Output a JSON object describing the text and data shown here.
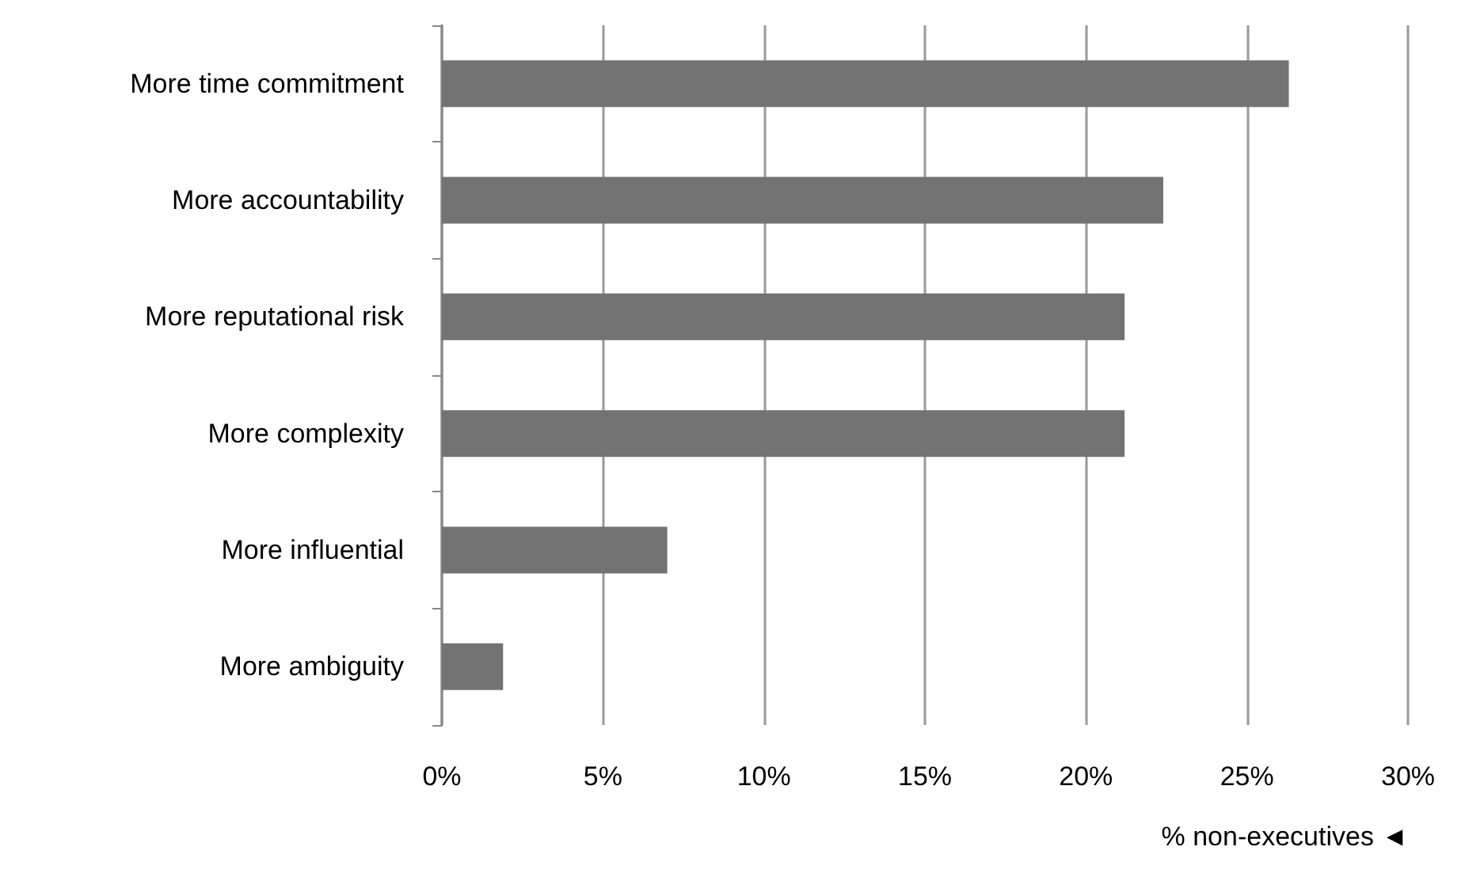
{
  "chart_data": {
    "type": "bar",
    "orientation": "horizontal",
    "xlabel": "% non-executives ◄",
    "categories": [
      "More time commitment",
      "More accountability",
      "More reputational risk",
      "More complexity",
      "More influential",
      "More ambiguity"
    ],
    "values": [
      26.3,
      22.4,
      21.2,
      21.2,
      7.0,
      1.9
    ],
    "color": "#737373",
    "xlim": [
      0,
      30
    ],
    "xticks": [
      {
        "value": 0,
        "label": "0%"
      },
      {
        "value": 5,
        "label": "5%"
      },
      {
        "value": 10,
        "label": "10%"
      },
      {
        "value": 15,
        "label": "15%"
      },
      {
        "value": 20,
        "label": "20%"
      },
      {
        "value": 25,
        "label": "25%"
      },
      {
        "value": 30,
        "label": "30%"
      }
    ],
    "grid": "x"
  }
}
